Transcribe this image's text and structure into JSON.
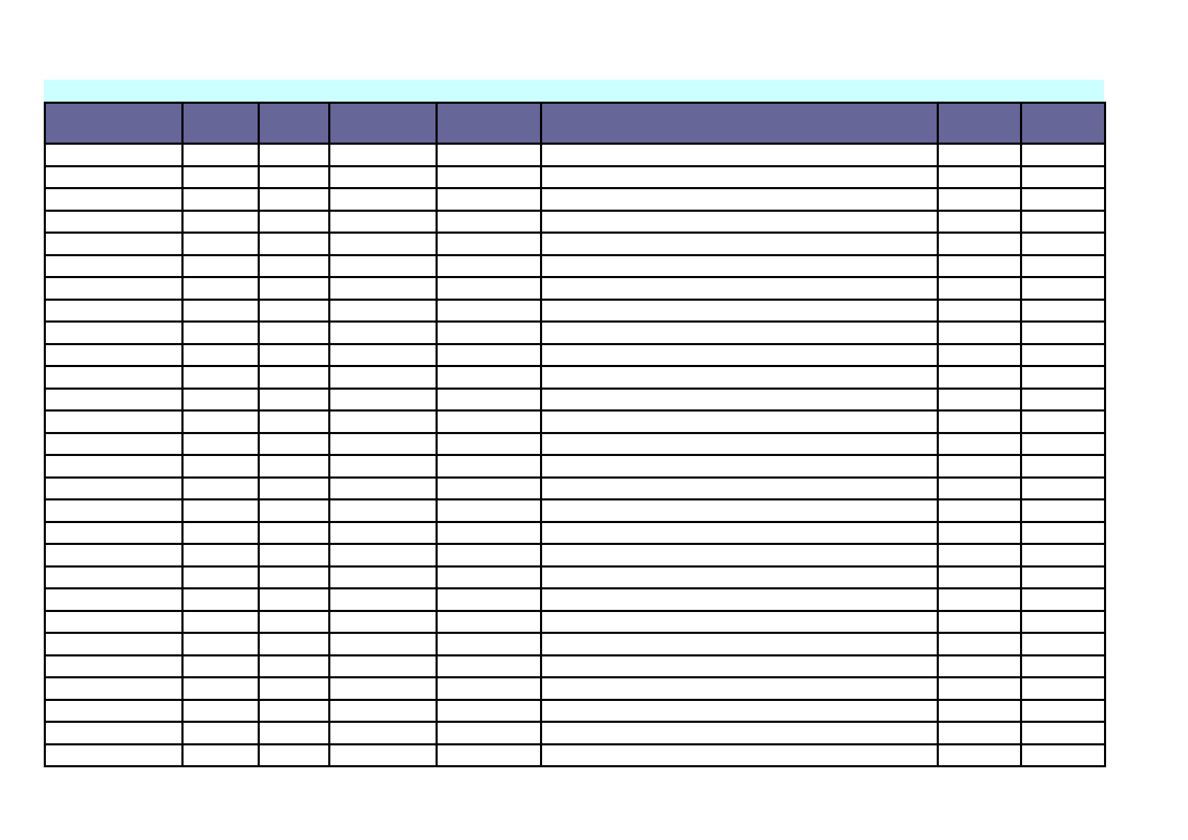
{
  "document": {
    "type": "blank-table-template",
    "title_banner_text": ""
  },
  "colors": {
    "page_background": "#ffffff",
    "banner_fill": "#ccffff",
    "header_fill": "#666699",
    "grid_border": "#000000",
    "cell_fill": "#ffffff"
  },
  "table": {
    "columns": [
      {
        "label": ""
      },
      {
        "label": ""
      },
      {
        "label": ""
      },
      {
        "label": ""
      },
      {
        "label": ""
      },
      {
        "label": ""
      },
      {
        "label": ""
      },
      {
        "label": ""
      }
    ],
    "row_count": 28,
    "rows": []
  }
}
